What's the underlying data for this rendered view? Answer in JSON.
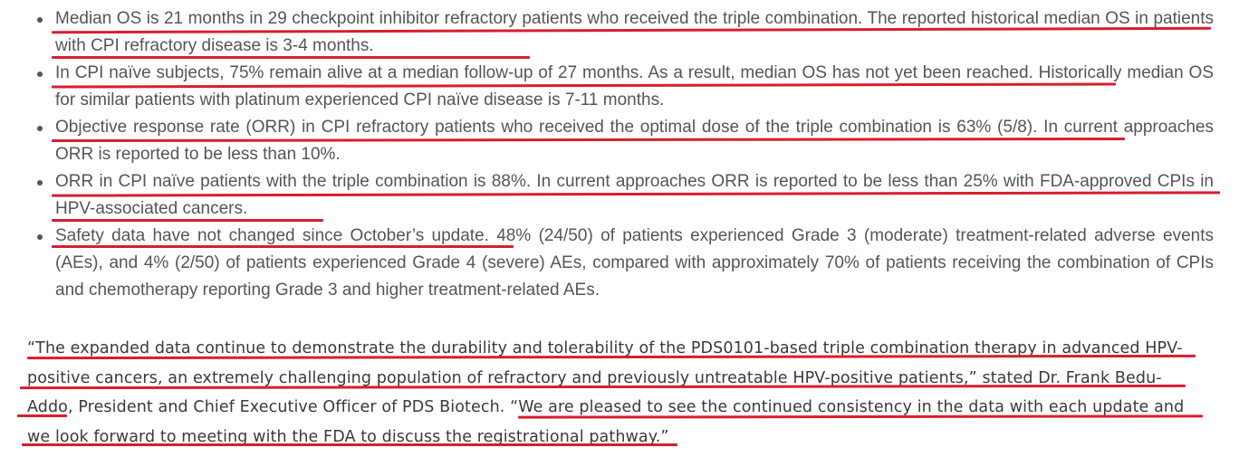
{
  "bullets": [
    "Median OS is 21 months in 29 checkpoint inhibitor refractory patients who received the triple combination. The reported historical median OS in patients with CPI refractory disease is 3-4 months.",
    "In CPI naïve subjects, 75% remain alive at a median follow-up of 27 months. As a result, median OS has not yet been reached. Historically median OS for similar patients with platinum experienced CPI naïve disease is 7-11 months.",
    "Objective response rate (ORR) in CPI refractory patients who received the optimal dose of the triple combination is 63% (5/8). In current approaches ORR is reported to be less than 10%.",
    "ORR in CPI naïve patients with the triple combination is 88%. In current approaches ORR is reported to be less than 25% with FDA-approved CPIs in HPV-associated cancers.",
    "Safety data have not changed since October’s update. 48% (24/50) of patients experienced Grade 3 (moderate) treatment-related adverse events (AEs), and 4% (2/50) of patients experienced Grade 4 (severe) AEs, compared with approximately 70% of patients receiving the combination of CPIs and chemotherapy reporting Grade 3 and higher treatment-related AEs."
  ],
  "quote": "“The expanded data continue to demonstrate the durability and tolerability of the PDS0101-based triple combination therapy in advanced HPV-positive cancers, an extremely challenging population of refractory and previously untreatable HPV-positive patients,” stated Dr. Frank Bedu-Addo, President and Chief Executive Officer of PDS Biotech. “We are pleased to see the continued consistency in the data with each update and we look forward to meeting with the FDA to discuss the registrational pathway.”",
  "annotation_color": "#d81e2c"
}
